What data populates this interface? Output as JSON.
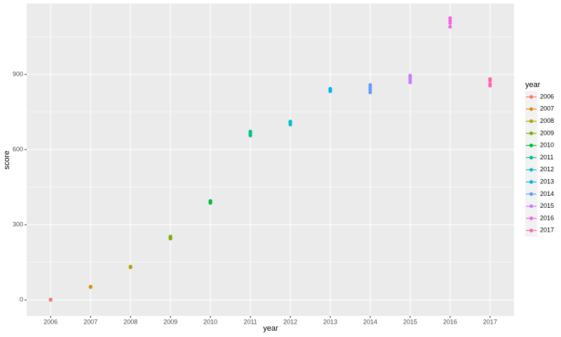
{
  "chart_data": {
    "type": "scatter",
    "x_label": "year",
    "y_label": "score",
    "legend_title": "year",
    "xlim": [
      2005.4,
      2017.6
    ],
    "ylim": [
      -64,
      1183
    ],
    "xticks": [
      2006,
      2007,
      2008,
      2009,
      2010,
      2011,
      2012,
      2013,
      2014,
      2015,
      2016,
      2017
    ],
    "yticks": [
      0,
      300,
      600,
      900
    ],
    "minor_yticks": [
      150,
      450,
      750,
      1050
    ],
    "grid": true,
    "legend": "right",
    "series": [
      {
        "name": "2006",
        "color": "#F8766D",
        "x": [
          2006,
          2006
        ],
        "values": [
          0,
          2
        ]
      },
      {
        "name": "2007",
        "color": "#DE8C00",
        "x": [
          2007,
          2007
        ],
        "values": [
          51,
          53
        ]
      },
      {
        "name": "2008",
        "color": "#B79F00",
        "x": [
          2008,
          2008
        ],
        "values": [
          130,
          133
        ]
      },
      {
        "name": "2009",
        "color": "#7CAE00",
        "x": [
          2009,
          2009,
          2009
        ],
        "values": [
          245,
          250,
          253
        ]
      },
      {
        "name": "2010",
        "color": "#00BA38",
        "x": [
          2010,
          2010,
          2010
        ],
        "values": [
          387,
          392,
          395
        ]
      },
      {
        "name": "2011",
        "color": "#00C08B",
        "x": [
          2011,
          2011,
          2011
        ],
        "values": [
          656,
          665,
          672
        ]
      },
      {
        "name": "2012",
        "color": "#00BFC4",
        "x": [
          2012,
          2012,
          2012
        ],
        "values": [
          700,
          708,
          712
        ]
      },
      {
        "name": "2013",
        "color": "#00B4F0",
        "x": [
          2013,
          2013,
          2013
        ],
        "values": [
          833,
          838,
          843
        ]
      },
      {
        "name": "2014",
        "color": "#619CFF",
        "x": [
          2014,
          2014,
          2014,
          2014
        ],
        "values": [
          828,
          838,
          848,
          858
        ]
      },
      {
        "name": "2015",
        "color": "#C77CFF",
        "x": [
          2015,
          2015,
          2015,
          2015
        ],
        "values": [
          868,
          878,
          888,
          896
        ]
      },
      {
        "name": "2016",
        "color": "#F564E3",
        "x": [
          2016,
          2016,
          2016,
          2016
        ],
        "values": [
          1090,
          1105,
          1115,
          1125
        ]
      },
      {
        "name": "2017",
        "color": "#FF64B0",
        "x": [
          2017,
          2017,
          2017,
          2017
        ],
        "values": [
          855,
          862,
          875,
          882
        ]
      }
    ]
  }
}
